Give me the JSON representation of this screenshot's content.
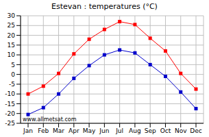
{
  "chart_data": {
    "type": "line",
    "title": "Estevan : temperatures (°C)",
    "categories": [
      "Jan",
      "Feb",
      "Mar",
      "Apr",
      "May",
      "Jun",
      "Jul",
      "Aug",
      "Sep",
      "Oct",
      "Nov",
      "Dec"
    ],
    "series": [
      {
        "color": "#ff0000",
        "marker": "square",
        "values": [
          -10,
          -6,
          0.5,
          10.5,
          18,
          23,
          27,
          25.5,
          18.5,
          12,
          0.5,
          -7.5
        ]
      },
      {
        "color": "#0000cc",
        "marker": "square",
        "values": [
          -20.5,
          -17,
          -10,
          -2,
          4.5,
          10,
          12.5,
          11,
          5,
          -1,
          -9,
          -17.5
        ]
      }
    ],
    "ylim": [
      -25,
      30
    ],
    "yticks": [
      -25,
      -20,
      -15,
      -10,
      -5,
      0,
      5,
      10,
      15,
      20,
      25,
      30
    ],
    "grid": true,
    "annotation": "www.allmetsat.com"
  }
}
